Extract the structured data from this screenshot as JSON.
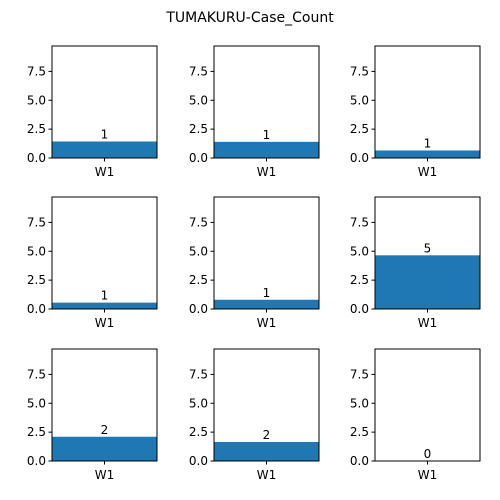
{
  "chart_data": {
    "type": "bar",
    "title": "TUMAKURU-Case_Count",
    "ylim": [
      0,
      9.7
    ],
    "yticks": [
      "0.0",
      "2.5",
      "5.0",
      "7.5"
    ],
    "grid": false,
    "bar_color": "#1f77b4",
    "panels": [
      {
        "categories": [
          "W1"
        ],
        "values": [
          1.43
        ],
        "label": "1"
      },
      {
        "categories": [
          "W1"
        ],
        "values": [
          1.4
        ],
        "label": "1"
      },
      {
        "categories": [
          "W1"
        ],
        "values": [
          0.65
        ],
        "label": "1"
      },
      {
        "categories": [
          "W1"
        ],
        "values": [
          0.55
        ],
        "label": "1"
      },
      {
        "categories": [
          "W1"
        ],
        "values": [
          0.8
        ],
        "label": "1"
      },
      {
        "categories": [
          "W1"
        ],
        "values": [
          4.65
        ],
        "label": "5"
      },
      {
        "categories": [
          "W1"
        ],
        "values": [
          2.1
        ],
        "label": "2"
      },
      {
        "categories": [
          "W1"
        ],
        "values": [
          1.65
        ],
        "label": "2"
      },
      {
        "categories": [
          "W1"
        ],
        "values": [
          0.0
        ],
        "label": "0"
      }
    ]
  }
}
